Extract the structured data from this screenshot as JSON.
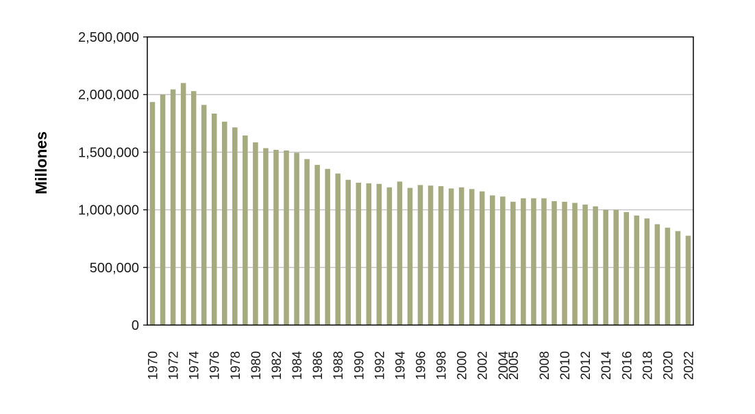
{
  "chart_data": {
    "type": "bar",
    "title": "",
    "xlabel": "",
    "ylabel": "Millones",
    "ylim": [
      0,
      2500000
    ],
    "yticks": [
      0,
      500000,
      1000000,
      1500000,
      2000000,
      2500000
    ],
    "ytick_labels": [
      "0",
      "500,000",
      "1,000,000",
      "1,500,000",
      "2,000,000",
      "2,500,000"
    ],
    "grid": "horizontal",
    "legend": "none",
    "bar_color": "#a5aa7f",
    "categories": [
      "1970",
      "1971",
      "1972",
      "1973",
      "1974",
      "1975",
      "1976",
      "1977",
      "1978",
      "1979",
      "1980",
      "1981",
      "1982",
      "1983",
      "1984",
      "1985",
      "1986",
      "1987",
      "1988",
      "1989",
      "1990",
      "1991",
      "1992",
      "1993",
      "1994",
      "1995",
      "1996",
      "1997",
      "1998",
      "1999",
      "2000",
      "2001",
      "2002",
      "2003",
      "2004",
      "2005",
      "2006",
      "2007",
      "2008",
      "2009",
      "2010",
      "2011",
      "2012",
      "2013",
      "2014",
      "2015",
      "2016",
      "2017",
      "2018",
      "2019",
      "2020",
      "2021",
      "2022"
    ],
    "tick_labels": [
      "1970",
      "",
      "1972",
      "",
      "1974",
      "",
      "1976",
      "",
      "1978",
      "",
      "1980",
      "",
      "1982",
      "",
      "1984",
      "",
      "1986",
      "",
      "1988",
      "",
      "1990",
      "",
      "1992",
      "",
      "1994",
      "",
      "1996",
      "",
      "1998",
      "",
      "2000",
      "",
      "2002",
      "",
      "2004",
      "2005",
      "",
      "",
      "2008",
      "",
      "2010",
      "",
      "2012",
      "",
      "2014",
      "",
      "2016",
      "",
      "2018",
      "",
      "2020",
      "",
      "2022"
    ],
    "values": [
      1935000,
      2000000,
      2045000,
      2100000,
      2030000,
      1910000,
      1835000,
      1765000,
      1715000,
      1645000,
      1585000,
      1535000,
      1520000,
      1515000,
      1495000,
      1440000,
      1390000,
      1355000,
      1315000,
      1260000,
      1235000,
      1230000,
      1225000,
      1195000,
      1245000,
      1190000,
      1215000,
      1210000,
      1205000,
      1185000,
      1195000,
      1180000,
      1160000,
      1125000,
      1115000,
      1070000,
      1100000,
      1100000,
      1100000,
      1075000,
      1070000,
      1060000,
      1045000,
      1030000,
      1000000,
      1000000,
      980000,
      950000,
      925000,
      875000,
      845000,
      815000,
      775000
    ]
  }
}
